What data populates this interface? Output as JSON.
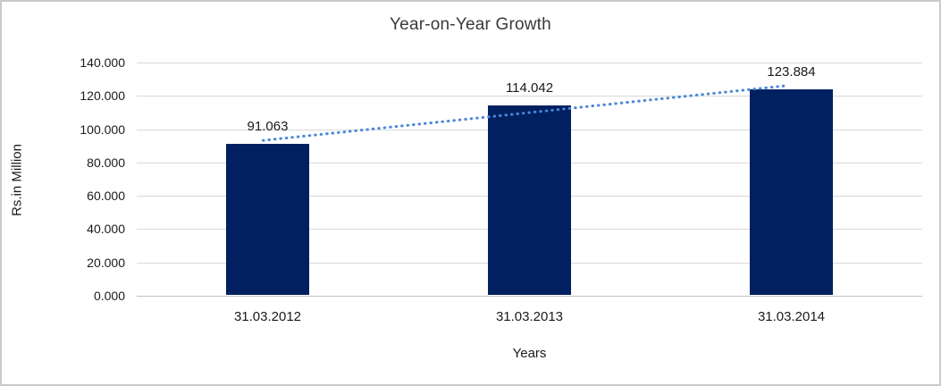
{
  "chart_data": {
    "type": "bar",
    "title": "Year-on-Year Growth",
    "xlabel": "Years",
    "ylabel": "Rs.in Million",
    "categories": [
      "31.03.2012",
      "31.03.2013",
      "31.03.2014"
    ],
    "values": [
      91.063,
      114.042,
      123.884
    ],
    "data_labels": [
      "91.063",
      "114.042",
      "123.884"
    ],
    "ylim": [
      0,
      140
    ],
    "y_tick_values": [
      0,
      20,
      40,
      60,
      80,
      100,
      120,
      140
    ],
    "y_tick_labels": [
      "0.000",
      "20.000",
      "40.000",
      "60.000",
      "80.000",
      "100.000",
      "120.000",
      "140.000"
    ],
    "grid": true,
    "legend": "none",
    "trendline": "linear-dotted",
    "colors": {
      "bar": "#002060",
      "trendline": "#4a86d8",
      "gridline": "#d9d9d9",
      "axis_line": "#c0c0c0",
      "title_text": "#3a3a3a",
      "label_text": "#1a1a1a",
      "border": "#c9c9c9",
      "background": "#ffffff"
    }
  }
}
